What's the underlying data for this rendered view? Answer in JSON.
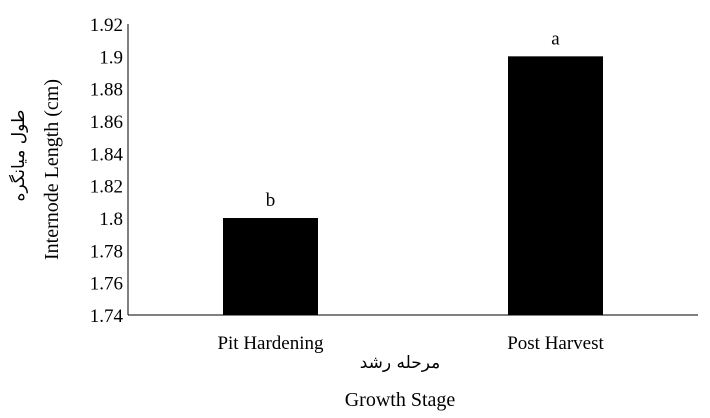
{
  "chart_data": {
    "type": "bar",
    "categories": [
      "Pit Hardening",
      "Post Harvest"
    ],
    "values": [
      1.8,
      1.9
    ],
    "significance_letters": [
      "b",
      "a"
    ],
    "xlabel": "Growth Stage",
    "xlabel_fa": "مرحله رشد",
    "ylabel": "Internode Length (cm)",
    "ylabel_fa": "طول میانگره",
    "ylim": [
      1.74,
      1.92
    ],
    "yticks": [
      "1.74",
      "1.76",
      "1.78",
      "1.8",
      "1.82",
      "1.84",
      "1.86",
      "1.88",
      "1.9",
      "1.92"
    ],
    "grid": false,
    "bar_color": "#000000"
  }
}
